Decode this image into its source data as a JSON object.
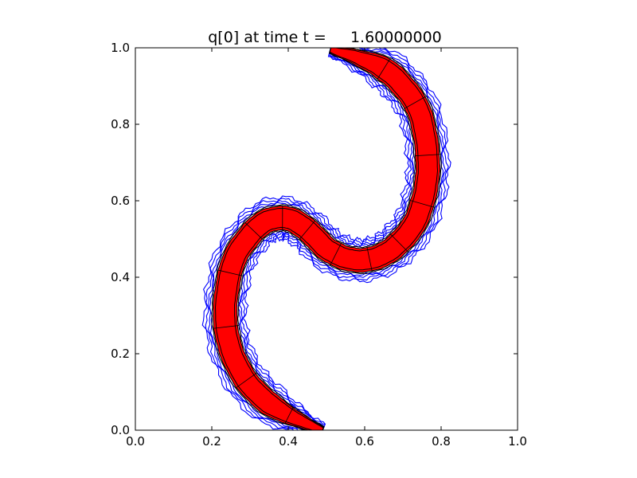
{
  "chart_data": {
    "type": "line",
    "title": "q[0] at time t =     1.60000000",
    "xlabel": "",
    "ylabel": "",
    "xlim": [
      0.0,
      1.0
    ],
    "ylim": [
      0.0,
      1.0
    ],
    "xticks": [
      "0.0",
      "0.2",
      "0.4",
      "0.6",
      "0.8",
      "1.0"
    ],
    "yticks": [
      "0.0",
      "0.2",
      "0.4",
      "0.6",
      "0.8",
      "1.0"
    ],
    "grid": false,
    "legend": "none",
    "colors": {
      "fill": "#ff0000",
      "contour_inner": "#000000",
      "contour_outer": "#0000ff",
      "frame": "#000000"
    },
    "centerline": {
      "x": [
        0.49,
        0.42,
        0.35,
        0.29,
        0.25,
        0.235,
        0.24,
        0.26,
        0.3,
        0.34,
        0.385,
        0.42,
        0.46,
        0.5,
        0.55,
        0.6,
        0.65,
        0.69,
        0.73,
        0.755,
        0.765,
        0.76,
        0.74,
        0.7,
        0.65,
        0.58,
        0.51
      ],
      "y": [
        0.0,
        0.03,
        0.07,
        0.13,
        0.21,
        0.29,
        0.37,
        0.45,
        0.51,
        0.545,
        0.555,
        0.545,
        0.515,
        0.475,
        0.45,
        0.445,
        0.46,
        0.49,
        0.54,
        0.61,
        0.68,
        0.76,
        0.84,
        0.9,
        0.945,
        0.975,
        0.995
      ]
    }
  }
}
